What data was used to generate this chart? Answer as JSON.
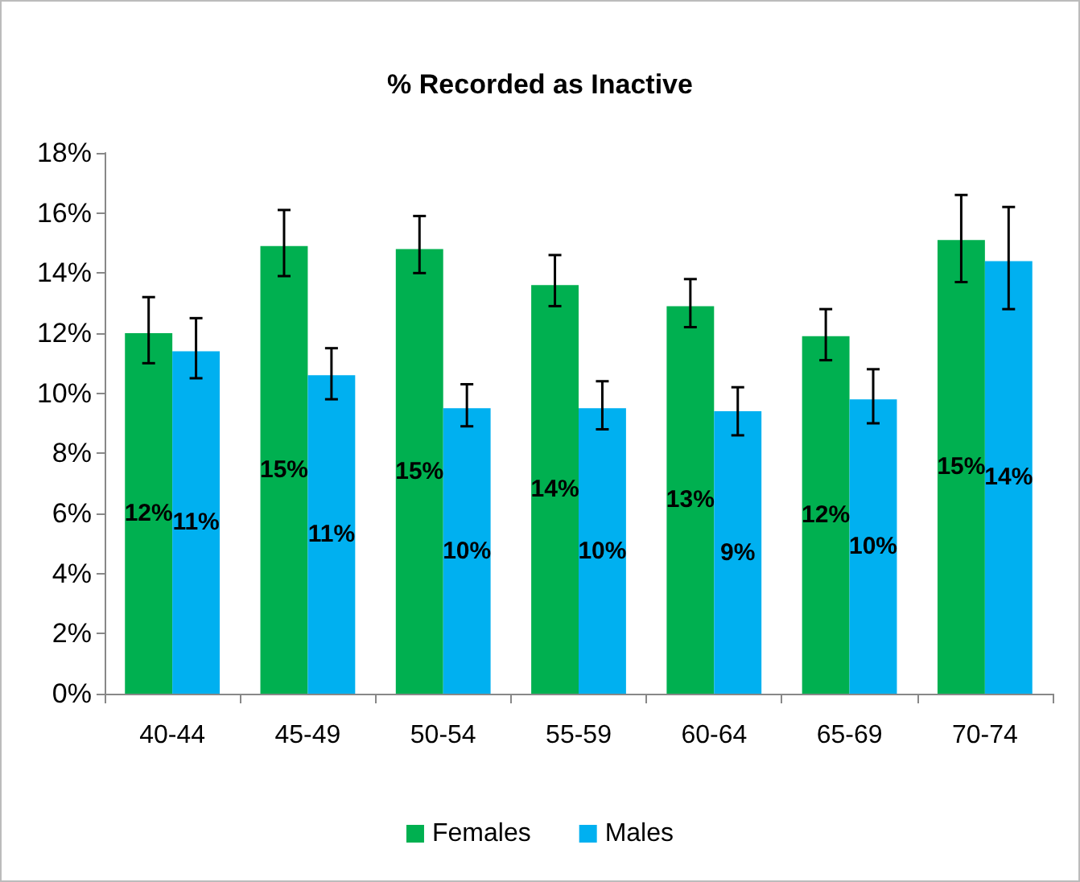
{
  "chart_data": {
    "type": "bar",
    "title": "% Recorded as Inactive",
    "categories": [
      "40-44",
      "45-49",
      "50-54",
      "55-59",
      "60-64",
      "65-69",
      "70-74"
    ],
    "series": [
      {
        "name": "Females",
        "color": "#00b050",
        "values": [
          12.0,
          14.9,
          14.8,
          13.6,
          12.9,
          11.9,
          15.1
        ],
        "errors": [
          [
            11.0,
            13.2
          ],
          [
            13.9,
            16.1
          ],
          [
            14.0,
            15.9
          ],
          [
            12.9,
            14.6
          ],
          [
            12.2,
            13.8
          ],
          [
            11.1,
            12.8
          ],
          [
            13.7,
            16.6
          ]
        ],
        "value_labels": [
          "12%",
          "15%",
          "15%",
          "14%",
          "13%",
          "12%",
          "15%"
        ]
      },
      {
        "name": "Males",
        "color": "#00b0f0",
        "values": [
          11.4,
          10.6,
          9.5,
          9.5,
          9.4,
          9.8,
          14.4
        ],
        "errors": [
          [
            10.5,
            12.5
          ],
          [
            9.8,
            11.5
          ],
          [
            8.9,
            10.3
          ],
          [
            8.8,
            10.4
          ],
          [
            8.6,
            10.2
          ],
          [
            9.0,
            10.8
          ],
          [
            12.8,
            16.2
          ]
        ],
        "value_labels": [
          "11%",
          "11%",
          "10%",
          "10%",
          "9%",
          "10%",
          "14%"
        ]
      }
    ],
    "ylim": [
      0,
      18
    ],
    "yticks": [
      {
        "value": 0,
        "label": "0%"
      },
      {
        "value": 2,
        "label": "2%"
      },
      {
        "value": 4,
        "label": "4%"
      },
      {
        "value": 6,
        "label": "6%"
      },
      {
        "value": 8,
        "label": "8%"
      },
      {
        "value": 10,
        "label": "10%"
      },
      {
        "value": 12,
        "label": "12%"
      },
      {
        "value": 14,
        "label": "14%"
      },
      {
        "value": 16,
        "label": "16%"
      },
      {
        "value": 18,
        "label": "18%"
      }
    ],
    "grid": false,
    "legend": "bottom"
  }
}
